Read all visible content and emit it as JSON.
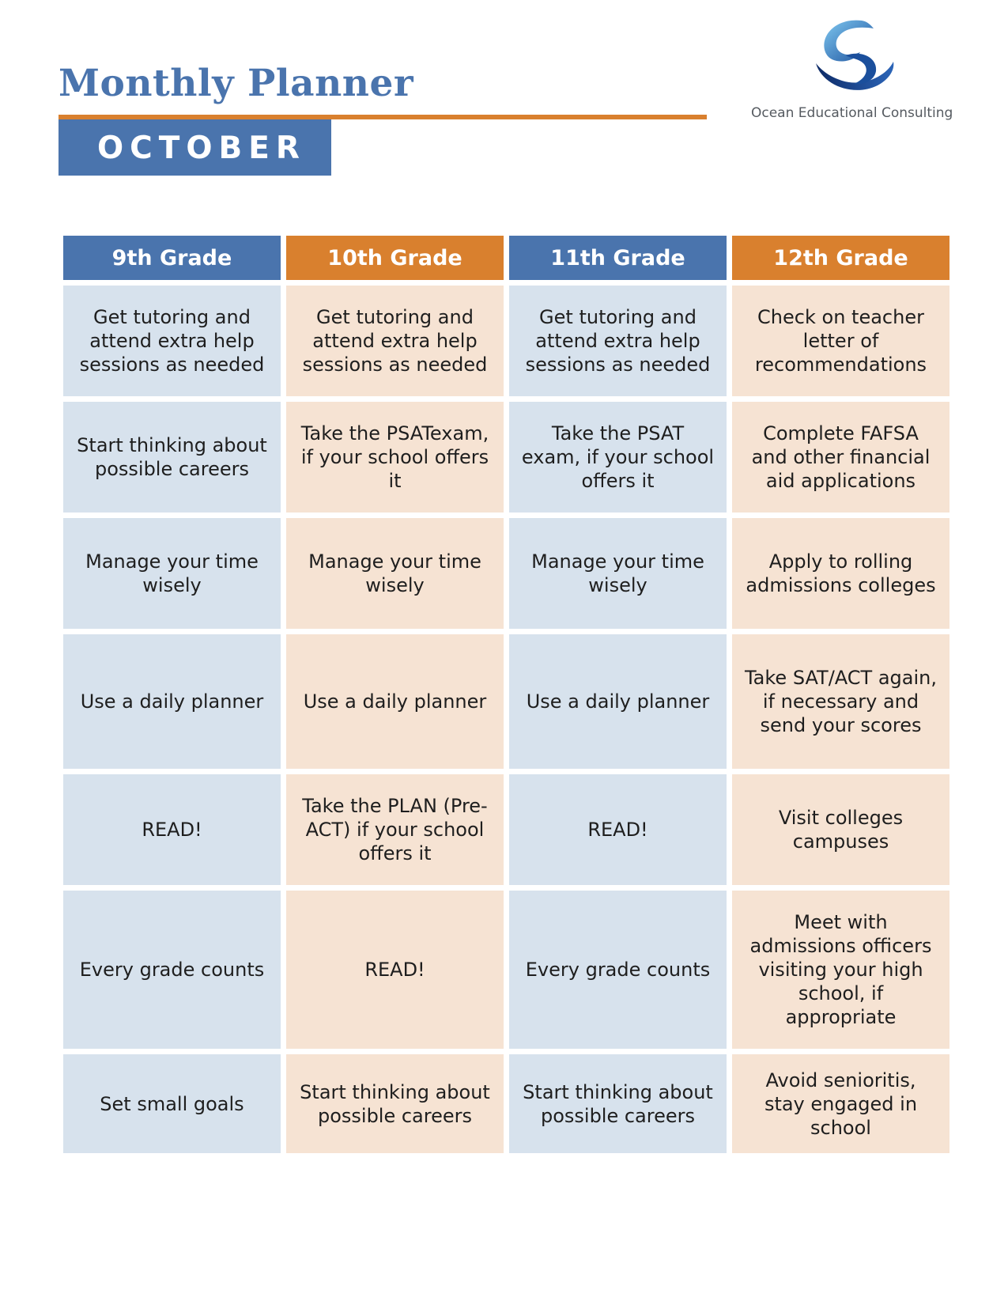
{
  "header": {
    "title": "Monthly Planner",
    "month": "OCTOBER"
  },
  "logo": {
    "text": "Ocean Educational Consulting",
    "icon": "ocean-swirl-logo-icon"
  },
  "colors": {
    "blue": "#4a74ad",
    "orange": "#d9802e",
    "light_blue": "#d7e2ed",
    "light_peach": "#f6e3d3"
  },
  "table": {
    "headers": [
      "9th Grade",
      "10th Grade",
      "11th Grade",
      "12th Grade"
    ],
    "rows": [
      [
        "Get tutoring and attend extra help sessions as needed",
        "Get tutoring and attend extra help sessions as needed",
        "Get tutoring and attend extra help sessions as needed",
        "Check on teacher letter of recommendations"
      ],
      [
        "Start thinking about possible careers",
        "Take the PSATexam, if your school offers it",
        "Take the PSAT exam, if your school offers it",
        "Complete FAFSA and other financial aid applications"
      ],
      [
        "Manage your time wisely",
        "Manage your time wisely",
        "Manage your time wisely",
        "Apply to rolling admissions colleges"
      ],
      [
        "Use a daily planner",
        "Use a daily planner",
        "Use a daily planner",
        "Take SAT/ACT again, if necessary and send your scores"
      ],
      [
        "READ!",
        "Take the PLAN (Pre-ACT) if your school offers it",
        "READ!",
        "Visit colleges campuses"
      ],
      [
        "Every grade counts",
        "READ!",
        "Every grade counts",
        "Meet with admissions officers visiting your high school, if appropriate"
      ],
      [
        "Set small goals",
        "Start thinking about possible careers",
        "Start thinking about possible careers",
        "Avoid senioritis, stay engaged in school"
      ]
    ]
  }
}
